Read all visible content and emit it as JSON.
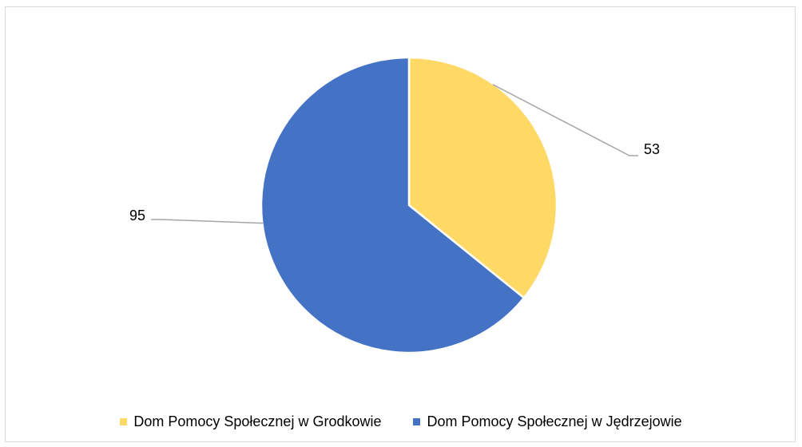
{
  "colors": {
    "series_0": "#FFD966",
    "series_1": "#4472C4",
    "leader_line": "#A6A6A6",
    "slice_border": "#FFFFFF"
  },
  "chart_data": {
    "type": "pie",
    "title": "",
    "categories": [
      "Dom Pomocy Społecznej w Grodkowie",
      "Dom Pomocy Społecznej w Jędrzejowie"
    ],
    "values": [
      53,
      95
    ],
    "data_labels": [
      "53",
      "95"
    ],
    "legend_placement": "bottom",
    "start_angle": "12 o'clock, clockwise"
  }
}
